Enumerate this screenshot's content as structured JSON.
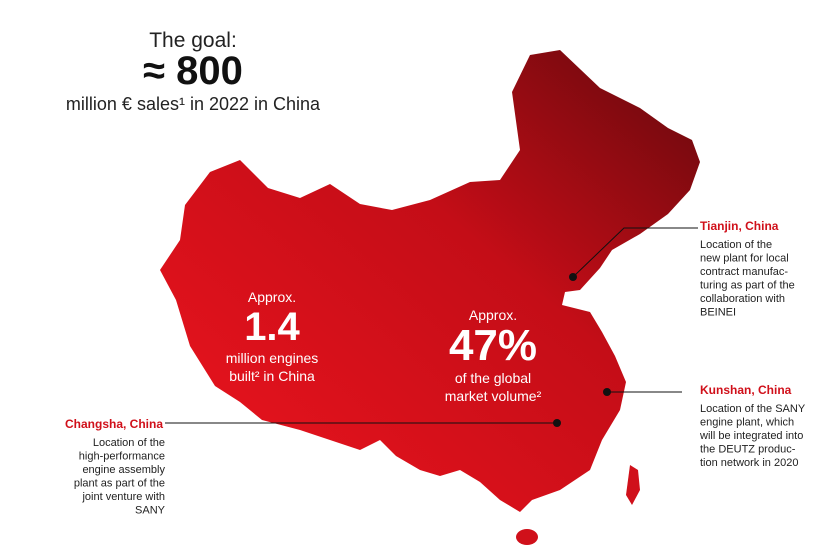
{
  "header": {
    "title": "The goal:",
    "value": "≈ 800",
    "subtitle": "million € sales¹ in 2022 in China"
  },
  "stats": [
    {
      "prefix": "Approx.",
      "value": "1.4",
      "caption": [
        "million engines",
        "built² in China"
      ]
    },
    {
      "prefix": "Approx.",
      "value": "47%",
      "caption": [
        "of the global",
        "market volume²"
      ]
    }
  ],
  "locations": [
    {
      "name": "Tianjin, China",
      "description": [
        "Location of the",
        "new plant for local",
        "contract manufac-",
        "turing as part of the",
        "collaboration with",
        "BEINEI"
      ]
    },
    {
      "name": "Kunshan, China",
      "description": [
        "Location of the SANY",
        "engine plant, which",
        "will be integrated into",
        "the DEUTZ produc-",
        "tion network in 2020"
      ]
    },
    {
      "name": "Changsha, China",
      "description": [
        "Location of the",
        "high-performance",
        "engine assembly",
        "plant as part of the",
        "joint venture with",
        "SANY"
      ]
    }
  ]
}
